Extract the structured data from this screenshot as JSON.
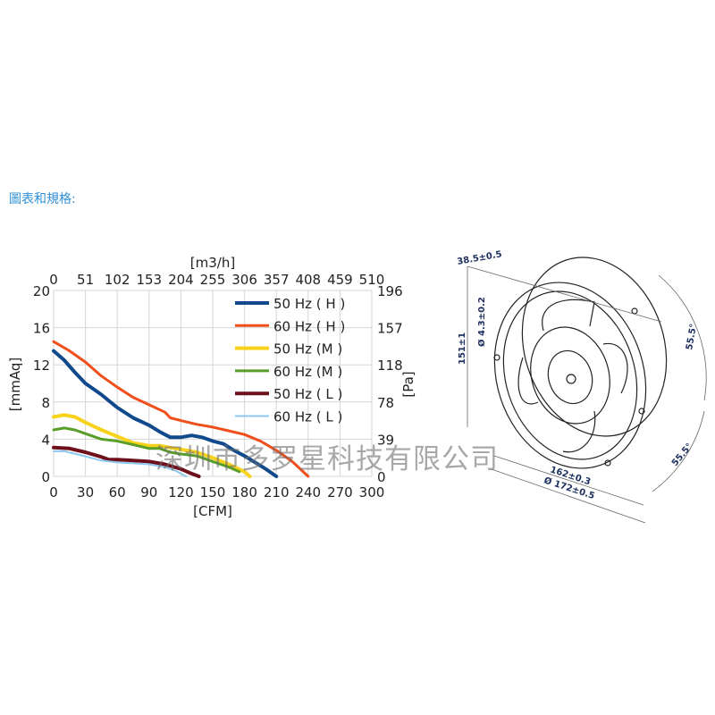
{
  "heading": "圖表和規格:",
  "watermark": "深圳市多罗星科技有限公司",
  "chart_data": {
    "type": "line",
    "xlabel": "[CFM]",
    "ylabel": "[mmAq]",
    "x2label": "[m3/h]",
    "y2label": "[Pa]",
    "xlim": [
      0,
      300
    ],
    "ylim": [
      0,
      20
    ],
    "xticks": [
      0,
      30,
      60,
      90,
      120,
      150,
      180,
      210,
      240,
      270,
      300
    ],
    "yticks": [
      0,
      4,
      8,
      12,
      16,
      20
    ],
    "x2ticks": [
      "0",
      "51",
      "102",
      "153",
      "204",
      "255",
      "306",
      "357",
      "408",
      "459",
      "510"
    ],
    "y2ticks": [
      "0",
      "39",
      "78",
      "118",
      "157",
      "196"
    ],
    "grid": true,
    "legend": "top-right",
    "series": [
      {
        "name": "50 Hz ( H )",
        "color": "#114a8c",
        "points": [
          [
            0,
            13.5
          ],
          [
            10,
            12.5
          ],
          [
            20,
            11.2
          ],
          [
            30,
            10
          ],
          [
            45,
            8.8
          ],
          [
            60,
            7.4
          ],
          [
            75,
            6.3
          ],
          [
            90,
            5.5
          ],
          [
            100,
            4.8
          ],
          [
            110,
            4.2
          ],
          [
            120,
            4.2
          ],
          [
            130,
            4.4
          ],
          [
            140,
            4.2
          ],
          [
            150,
            3.8
          ],
          [
            160,
            3.5
          ],
          [
            170,
            2.8
          ],
          [
            180,
            2.2
          ],
          [
            190,
            1.5
          ],
          [
            200,
            0.8
          ],
          [
            210,
            0
          ]
        ]
      },
      {
        "name": "60 Hz ( H )",
        "color": "#f04e1a",
        "points": [
          [
            0,
            14.5
          ],
          [
            15,
            13.5
          ],
          [
            30,
            12.3
          ],
          [
            45,
            10.8
          ],
          [
            60,
            9.6
          ],
          [
            75,
            8.5
          ],
          [
            90,
            7.7
          ],
          [
            105,
            6.9
          ],
          [
            110,
            6.3
          ],
          [
            120,
            6
          ],
          [
            135,
            5.6
          ],
          [
            150,
            5.3
          ],
          [
            165,
            4.9
          ],
          [
            180,
            4.5
          ],
          [
            195,
            3.8
          ],
          [
            210,
            2.8
          ],
          [
            225,
            1.6
          ],
          [
            240,
            0
          ]
        ]
      },
      {
        "name": "50 Hz (M )",
        "color": "#f7d21a",
        "points": [
          [
            0,
            6.4
          ],
          [
            10,
            6.6
          ],
          [
            20,
            6.4
          ],
          [
            30,
            5.8
          ],
          [
            45,
            5
          ],
          [
            60,
            4.3
          ],
          [
            75,
            3.6
          ],
          [
            90,
            3.3
          ],
          [
            100,
            3.3
          ],
          [
            110,
            3.1
          ],
          [
            120,
            2.9
          ],
          [
            135,
            2.6
          ],
          [
            150,
            2
          ],
          [
            165,
            1.3
          ],
          [
            180,
            0.5
          ],
          [
            185,
            0
          ]
        ]
      },
      {
        "name": "60 Hz (M )",
        "color": "#5a9e2a",
        "points": [
          [
            0,
            5
          ],
          [
            10,
            5.2
          ],
          [
            20,
            5
          ],
          [
            30,
            4.6
          ],
          [
            45,
            4
          ],
          [
            60,
            3.8
          ],
          [
            75,
            3.4
          ],
          [
            90,
            3
          ],
          [
            100,
            3
          ],
          [
            110,
            2.6
          ],
          [
            120,
            2.4
          ],
          [
            135,
            2.2
          ],
          [
            150,
            1.6
          ],
          [
            165,
            1
          ],
          [
            175,
            0.5
          ]
        ]
      },
      {
        "name": "50 Hz ( L )",
        "color": "#6e0f1c",
        "points": [
          [
            0,
            3.1
          ],
          [
            15,
            3
          ],
          [
            30,
            2.6
          ],
          [
            45,
            2.1
          ],
          [
            52,
            1.8
          ],
          [
            60,
            1.8
          ],
          [
            75,
            1.7
          ],
          [
            90,
            1.6
          ],
          [
            105,
            1.3
          ],
          [
            120,
            0.8
          ],
          [
            130,
            0.3
          ],
          [
            137,
            0
          ]
        ]
      },
      {
        "name": "60 Hz ( L )",
        "color": "#8cc8ef",
        "points": [
          [
            0,
            2.7
          ],
          [
            10,
            2.7
          ],
          [
            25,
            2.3
          ],
          [
            45,
            1.7
          ],
          [
            60,
            1.5
          ],
          [
            75,
            1.4
          ],
          [
            90,
            1.3
          ],
          [
            105,
            1
          ],
          [
            115,
            0.6
          ],
          [
            125,
            0
          ]
        ]
      }
    ]
  },
  "drawing": {
    "depth": "38.5±0.5",
    "height": "151±1",
    "hole": "Ø 4.3±0.2",
    "mount_spacing": "162±0.3",
    "diameter": "Ø 172±0.5",
    "angle_top": "55.5°",
    "angle_bottom": "55.5°"
  }
}
